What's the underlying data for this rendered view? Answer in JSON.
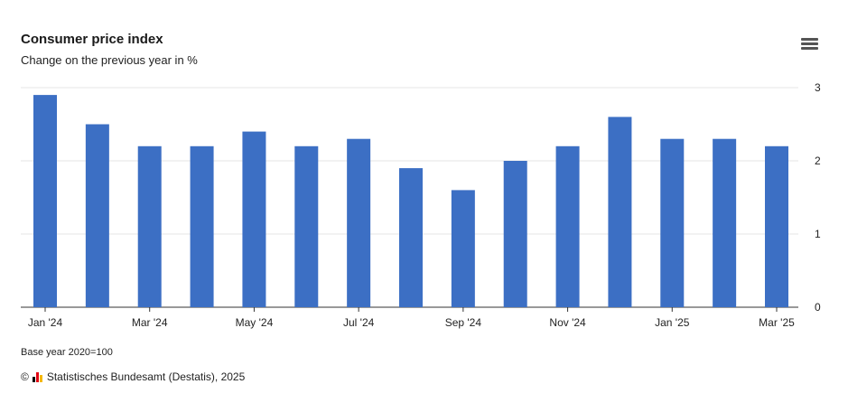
{
  "chart_data": {
    "type": "bar",
    "title": "Consumer price index",
    "subtitle": "Change on the previous year in %",
    "categories": [
      "Jan '24",
      "Feb '24",
      "Mar '24",
      "Apr '24",
      "May '24",
      "Jun '24",
      "Jul '24",
      "Aug '24",
      "Sep '24",
      "Oct '24",
      "Nov '24",
      "Dec '24",
      "Jan '25",
      "Feb '25",
      "Mar '25"
    ],
    "x_tick_labels": [
      "Jan '24",
      "Mar '24",
      "May '24",
      "Jul '24",
      "Sep '24",
      "Nov '24",
      "Jan '25",
      "Mar '25"
    ],
    "values": [
      2.9,
      2.5,
      2.2,
      2.2,
      2.4,
      2.2,
      2.3,
      1.9,
      1.6,
      2.0,
      2.2,
      2.6,
      2.3,
      2.3,
      2.2
    ],
    "ylim": [
      0,
      3
    ],
    "y_ticks": [
      0,
      1,
      2,
      3
    ],
    "y_axis_side": "right",
    "grid": true,
    "bar_color": "#3c6fc4"
  },
  "footer": {
    "note": "Base year 2020=100",
    "copyright_symbol": "©",
    "credit": "Statistisches Bundesamt (Destatis), 2025"
  },
  "icons": {
    "menu": "hamburger-menu-icon",
    "logo": "destatis-logo-icon"
  },
  "colors": {
    "logo": [
      "#000000",
      "#e30613",
      "#f5b800"
    ]
  }
}
